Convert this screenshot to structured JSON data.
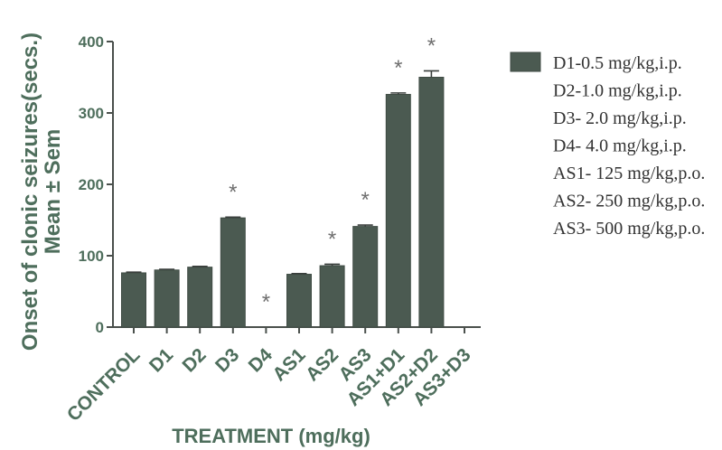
{
  "colors": {
    "background": "#ffffff",
    "bar": "#4b5a51",
    "bar_edge": "#3f4b44",
    "error_bar": "#3a3f3c",
    "axis_line": "#4a504c",
    "axis_text": "#4e6e5c",
    "marker": "#6e6e6e",
    "legend_text": "#333333"
  },
  "chart_data": {
    "type": "bar",
    "categories": [
      "CONTROL",
      "D1",
      "D2",
      "D3",
      "D4",
      "AS1",
      "AS2",
      "AS3",
      "AS1+D1",
      "AS2+D2",
      "AS3+D3"
    ],
    "values": [
      76,
      80,
      84,
      153,
      0,
      74,
      86,
      141,
      326,
      350,
      0
    ],
    "errors": [
      1,
      1,
      1,
      1,
      0,
      1,
      2,
      2,
      2,
      9,
      0
    ],
    "markers": [
      null,
      null,
      null,
      "*",
      "*",
      null,
      "*",
      "*",
      "*",
      "*",
      null
    ],
    "xlabel": "TREATMENT (mg/kg)",
    "ylabel": [
      "Onset of clonic seizures(secs.)",
      "Mean ± Sem"
    ],
    "ylim": [
      0,
      400
    ],
    "yticks": [
      0,
      100,
      200,
      300,
      400
    ],
    "grid": false,
    "legend": {
      "placement": "top-right",
      "entries": [
        "D1-0.5 mg/kg,i.p.",
        "D2-1.0 mg/kg,i.p.",
        "D3- 2.0 mg/kg,i.p.",
        "D4- 4.0 mg/kg,i.p.",
        "AS1- 125 mg/kg,p.o.",
        "AS2- 250 mg/kg,p.o.",
        "AS3- 500 mg/kg,p.o."
      ]
    }
  }
}
